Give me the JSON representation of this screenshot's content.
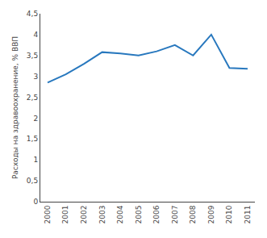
{
  "chart_data": {
    "type": "line",
    "ylabel": "Расходы на здравоохранение, % ВВП",
    "x": [
      2000,
      2001,
      2002,
      2003,
      2004,
      2005,
      2006,
      2007,
      2008,
      2009,
      2010,
      2011
    ],
    "values": [
      2.85,
      3.05,
      3.3,
      3.58,
      3.55,
      3.5,
      3.6,
      3.75,
      3.5,
      4.0,
      3.2,
      3.18
    ],
    "color": "#2878BE",
    "xlim": [
      1999.6,
      2011.4
    ],
    "xticks": [
      2000,
      2001,
      2002,
      2003,
      2004,
      2005,
      2006,
      2007,
      2008,
      2009,
      2010,
      2011
    ],
    "ylim": [
      0,
      4.5
    ],
    "yticks": [
      0,
      {
        "value": 0.5,
        "label": "0,5"
      },
      1,
      {
        "value": 1.5,
        "label": "1,5"
      },
      2,
      {
        "value": 2.5,
        "label": "2,5"
      },
      3,
      {
        "value": 3.5,
        "label": "3,5"
      },
      4,
      {
        "value": 4.5,
        "label": "4,5"
      }
    ],
    "grid": false
  }
}
